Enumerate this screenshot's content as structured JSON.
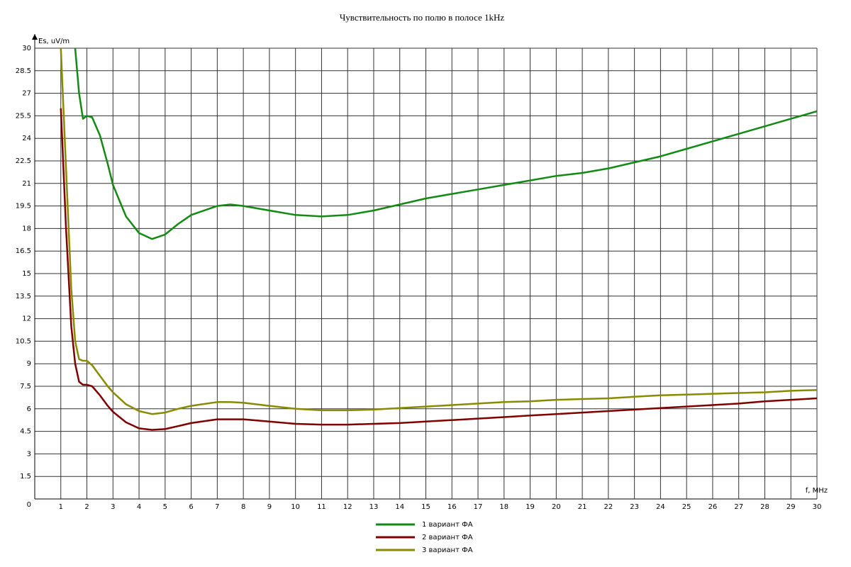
{
  "chart_data": {
    "type": "line",
    "title": "Чувствительность по полю в полосе 1kHz",
    "y_label": "Es, uV/m",
    "x_label": "f, MHz",
    "x": [
      1,
      1.2,
      1.4,
      1.55,
      1.7,
      1.85,
      2,
      2.2,
      2.5,
      2.8,
      3,
      3.5,
      4,
      4.5,
      5,
      5.5,
      6,
      7,
      7.5,
      8,
      9,
      10,
      11,
      12,
      13,
      14,
      15,
      16,
      17,
      18,
      19,
      20,
      21,
      22,
      23,
      24,
      25,
      26,
      27,
      28,
      29,
      30
    ],
    "series": [
      {
        "name": "1 вариант ФА",
        "color": "#138a13",
        "values": [
          null,
          null,
          null,
          30,
          27,
          25.3,
          25.5,
          25.4,
          24.2,
          22.3,
          20.9,
          18.8,
          17.7,
          17.3,
          17.6,
          18.3,
          18.9,
          19.5,
          19.6,
          19.5,
          19.2,
          18.9,
          18.8,
          18.9,
          19.2,
          19.6,
          20.0,
          20.3,
          20.6,
          20.9,
          21.2,
          21.5,
          21.7,
          22.0,
          22.4,
          22.8,
          23.3,
          23.8,
          24.3,
          24.8,
          25.3,
          25.8
        ]
      },
      {
        "name": "2 вариант ФА",
        "color": "#800000",
        "values": [
          26,
          18,
          11.5,
          9,
          7.8,
          7.6,
          7.6,
          7.5,
          6.9,
          6.2,
          5.8,
          5.1,
          4.7,
          4.6,
          4.65,
          4.85,
          5.05,
          5.3,
          5.3,
          5.3,
          5.15,
          5.0,
          4.95,
          4.95,
          5.0,
          5.05,
          5.15,
          5.25,
          5.35,
          5.45,
          5.55,
          5.65,
          5.75,
          5.85,
          5.95,
          6.05,
          6.15,
          6.25,
          6.35,
          6.5,
          6.6,
          6.7
        ]
      },
      {
        "name": "3 вариант ФА",
        "color": "#8a8a00",
        "values": [
          30,
          22,
          14,
          10.5,
          9.3,
          9.2,
          9.2,
          8.9,
          8.2,
          7.5,
          7.1,
          6.3,
          5.85,
          5.65,
          5.75,
          6.0,
          6.2,
          6.45,
          6.45,
          6.4,
          6.2,
          6.0,
          5.9,
          5.9,
          5.95,
          6.05,
          6.15,
          6.25,
          6.35,
          6.45,
          6.5,
          6.6,
          6.65,
          6.7,
          6.8,
          6.9,
          6.95,
          7.0,
          7.05,
          7.1,
          7.2,
          7.25
        ]
      }
    ],
    "xlim": [
      0,
      30
    ],
    "xticks": [
      1,
      2,
      3,
      4,
      5,
      6,
      7,
      8,
      9,
      10,
      11,
      12,
      13,
      14,
      15,
      16,
      17,
      18,
      19,
      20,
      21,
      22,
      23,
      24,
      25,
      26,
      27,
      28,
      29,
      30
    ],
    "ylim": [
      0,
      30
    ],
    "yticks": [
      0,
      1.5,
      3,
      4.5,
      6,
      7.5,
      9,
      10.5,
      12,
      13.5,
      15,
      16.5,
      18,
      19.5,
      21,
      22.5,
      24,
      25.5,
      27,
      28.5,
      30
    ],
    "grid": true
  }
}
